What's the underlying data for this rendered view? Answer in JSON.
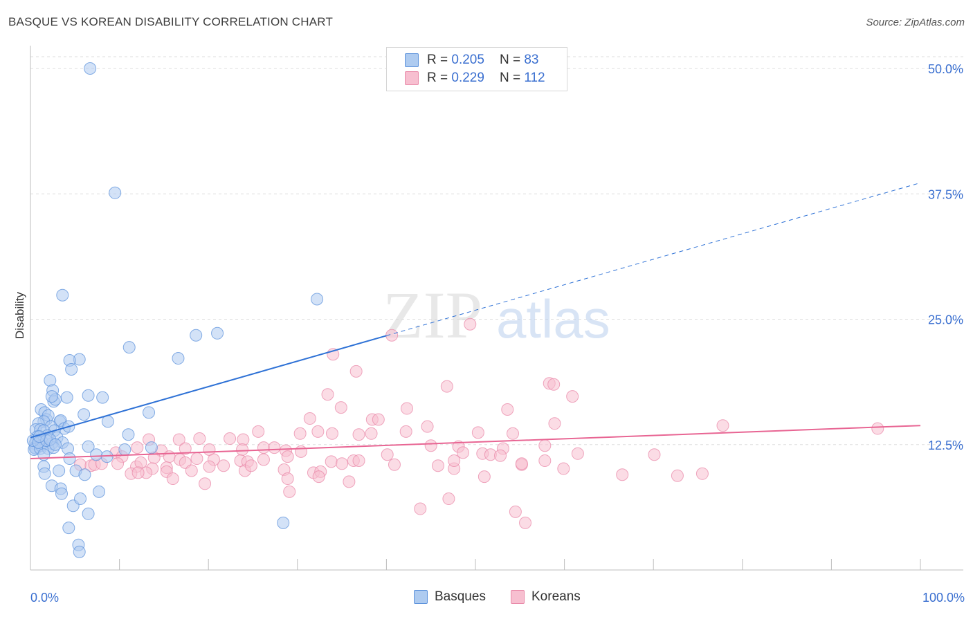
{
  "title": "BASQUE VS KOREAN DISABILITY CORRELATION CHART",
  "source": "Source: ZipAtlas.com",
  "watermark": {
    "zip": "ZIP",
    "atlas": "atlas"
  },
  "legend": {
    "rows": [
      {
        "r_label": "R =",
        "r_value": "0.205",
        "n_label": "N =",
        "n_value": "83"
      },
      {
        "r_label": "R =",
        "r_value": "0.229",
        "n_label": "N =",
        "n_value": "112"
      }
    ]
  },
  "bottom_legend": {
    "basques": "Basques",
    "koreans": "Koreans"
  },
  "colors": {
    "basques_fill": "#aecbf0",
    "basques_stroke": "#5e93dc",
    "basques_line": "#2f72d6",
    "koreans_fill": "#f7bfd0",
    "koreans_stroke": "#e98aa9",
    "koreans_line": "#e86593",
    "tick_label": "#3a6fd0",
    "grid": "#dddddd"
  },
  "chart_data": {
    "type": "scatter",
    "title": "BASQUE VS KOREAN DISABILITY CORRELATION CHART",
    "xlabel": "",
    "ylabel": "Disability",
    "xlim": [
      0,
      100
    ],
    "ylim": [
      0,
      52
    ],
    "x_tick_labels": [
      "0.0%",
      "100.0%"
    ],
    "y_ticks": [
      12.5,
      25.0,
      37.5,
      50.0
    ],
    "y_tick_labels": [
      "12.5%",
      "25.0%",
      "37.5%",
      "50.0%"
    ],
    "grid": true,
    "legend_position": "top-center",
    "series": [
      {
        "name": "Basques",
        "r": 0.205,
        "n": 83,
        "trend": {
          "x0": 0,
          "y0": 13.2,
          "x1": 100,
          "y1": 38.6,
          "solid_until_x": 40
        },
        "points": [
          [
            6.7,
            50.0
          ],
          [
            9.5,
            37.6
          ],
          [
            3.6,
            27.4
          ],
          [
            11.1,
            22.2
          ],
          [
            16.6,
            21.1
          ],
          [
            18.6,
            23.4
          ],
          [
            5.5,
            21.0
          ],
          [
            4.4,
            20.9
          ],
          [
            4.6,
            20.0
          ],
          [
            2.2,
            18.9
          ],
          [
            2.5,
            17.9
          ],
          [
            4.1,
            17.2
          ],
          [
            2.6,
            16.8
          ],
          [
            6.5,
            17.4
          ],
          [
            2.8,
            17.0
          ],
          [
            8.1,
            17.2
          ],
          [
            2.4,
            17.3
          ],
          [
            1.2,
            16.0
          ],
          [
            6.0,
            15.5
          ],
          [
            1.6,
            15.7
          ],
          [
            3.3,
            14.8
          ],
          [
            3.4,
            14.9
          ],
          [
            1.8,
            15.0
          ],
          [
            2.0,
            15.4
          ],
          [
            1.5,
            14.8
          ],
          [
            0.9,
            14.6
          ],
          [
            2.3,
            14.3
          ],
          [
            3.8,
            14.1
          ],
          [
            4.3,
            14.3
          ],
          [
            0.6,
            14.0
          ],
          [
            1.1,
            14.0
          ],
          [
            1.5,
            13.9
          ],
          [
            2.7,
            13.9
          ],
          [
            0.8,
            13.3
          ],
          [
            1.9,
            13.4
          ],
          [
            3.0,
            13.2
          ],
          [
            0.7,
            12.9
          ],
          [
            1.3,
            12.8
          ],
          [
            2.4,
            12.6
          ],
          [
            3.6,
            12.7
          ],
          [
            0.5,
            12.6
          ],
          [
            0.5,
            12.2
          ],
          [
            0.6,
            12.1
          ],
          [
            0.4,
            12.0
          ],
          [
            1.2,
            12.4
          ],
          [
            1.1,
            12.1
          ],
          [
            2.0,
            12.1
          ],
          [
            2.6,
            12.2
          ],
          [
            4.2,
            12.1
          ],
          [
            6.5,
            12.3
          ],
          [
            10.6,
            12.0
          ],
          [
            13.6,
            12.2
          ],
          [
            8.7,
            14.8
          ],
          [
            13.3,
            15.7
          ],
          [
            11.0,
            13.5
          ],
          [
            1.5,
            11.5
          ],
          [
            4.4,
            11.1
          ],
          [
            7.4,
            11.5
          ],
          [
            8.6,
            11.3
          ],
          [
            1.5,
            10.3
          ],
          [
            1.6,
            9.6
          ],
          [
            3.2,
            9.9
          ],
          [
            5.1,
            9.9
          ],
          [
            6.1,
            9.5
          ],
          [
            2.4,
            8.4
          ],
          [
            3.4,
            8.1
          ],
          [
            3.5,
            7.6
          ],
          [
            7.7,
            7.8
          ],
          [
            4.8,
            6.4
          ],
          [
            5.6,
            7.1
          ],
          [
            6.5,
            5.6
          ],
          [
            4.3,
            4.2
          ],
          [
            5.4,
            2.5
          ],
          [
            5.5,
            1.8
          ],
          [
            32.2,
            27.0
          ],
          [
            21.0,
            23.6
          ],
          [
            28.4,
            4.7
          ],
          [
            0.3,
            12.9
          ],
          [
            0.9,
            12.7
          ],
          [
            1.8,
            12.9
          ],
          [
            2.2,
            13.0
          ],
          [
            1.0,
            13.3
          ],
          [
            2.8,
            12.5
          ]
        ]
      },
      {
        "name": "Koreans",
        "r": 0.229,
        "n": 112,
        "trend": {
          "x0": 0,
          "y0": 11.1,
          "x1": 100,
          "y1": 14.4
        },
        "points": [
          [
            49.4,
            24.5
          ],
          [
            40.6,
            23.4
          ],
          [
            34.0,
            21.5
          ],
          [
            36.6,
            19.8
          ],
          [
            46.8,
            18.3
          ],
          [
            58.3,
            18.6
          ],
          [
            58.8,
            18.5
          ],
          [
            60.9,
            17.3
          ],
          [
            33.4,
            17.5
          ],
          [
            34.9,
            16.2
          ],
          [
            42.3,
            16.1
          ],
          [
            53.6,
            16.0
          ],
          [
            31.4,
            15.1
          ],
          [
            38.4,
            15.0
          ],
          [
            39.1,
            15.0
          ],
          [
            58.9,
            14.6
          ],
          [
            44.6,
            14.3
          ],
          [
            77.8,
            14.4
          ],
          [
            95.2,
            14.1
          ],
          [
            25.6,
            13.8
          ],
          [
            30.3,
            13.6
          ],
          [
            32.3,
            13.8
          ],
          [
            33.9,
            13.6
          ],
          [
            36.9,
            13.5
          ],
          [
            38.3,
            13.6
          ],
          [
            42.2,
            13.8
          ],
          [
            50.3,
            13.7
          ],
          [
            54.2,
            13.6
          ],
          [
            13.3,
            13.0
          ],
          [
            16.7,
            13.0
          ],
          [
            19.0,
            13.1
          ],
          [
            22.4,
            13.1
          ],
          [
            23.9,
            13.0
          ],
          [
            45.0,
            12.4
          ],
          [
            48.1,
            12.3
          ],
          [
            53.1,
            12.1
          ],
          [
            57.8,
            12.4
          ],
          [
            48.6,
            11.7
          ],
          [
            50.8,
            11.6
          ],
          [
            51.7,
            11.5
          ],
          [
            52.8,
            11.4
          ],
          [
            61.5,
            11.6
          ],
          [
            70.1,
            11.5
          ],
          [
            9.6,
            11.7
          ],
          [
            10.3,
            11.3
          ],
          [
            12.0,
            12.2
          ],
          [
            14.7,
            11.9
          ],
          [
            17.4,
            12.1
          ],
          [
            20.1,
            12.0
          ],
          [
            23.8,
            12.0
          ],
          [
            26.2,
            12.2
          ],
          [
            27.4,
            12.2
          ],
          [
            28.7,
            11.9
          ],
          [
            30.4,
            11.8
          ],
          [
            13.9,
            11.2
          ],
          [
            15.6,
            11.3
          ],
          [
            16.8,
            11.0
          ],
          [
            18.7,
            11.1
          ],
          [
            20.6,
            11.0
          ],
          [
            23.6,
            10.9
          ],
          [
            24.4,
            10.8
          ],
          [
            26.2,
            11.0
          ],
          [
            28.9,
            11.3
          ],
          [
            33.8,
            10.8
          ],
          [
            35.0,
            10.6
          ],
          [
            36.3,
            10.9
          ],
          [
            36.9,
            10.9
          ],
          [
            45.8,
            10.4
          ],
          [
            55.2,
            10.5
          ],
          [
            57.8,
            10.9
          ],
          [
            59.9,
            10.1
          ],
          [
            5.6,
            10.5
          ],
          [
            6.8,
            10.4
          ],
          [
            7.2,
            10.5
          ],
          [
            8.0,
            10.6
          ],
          [
            9.8,
            10.6
          ],
          [
            11.9,
            10.3
          ],
          [
            12.4,
            10.7
          ],
          [
            13.7,
            10.1
          ],
          [
            15.3,
            10.2
          ],
          [
            17.4,
            10.7
          ],
          [
            18.1,
            9.9
          ],
          [
            20.1,
            10.3
          ],
          [
            21.7,
            10.4
          ],
          [
            24.1,
            9.9
          ],
          [
            24.8,
            10.4
          ],
          [
            28.5,
            10.0
          ],
          [
            31.8,
            9.7
          ],
          [
            32.6,
            9.8
          ],
          [
            13.0,
            9.7
          ],
          [
            15.3,
            9.8
          ],
          [
            11.3,
            9.6
          ],
          [
            12.1,
            9.7
          ],
          [
            16.0,
            9.1
          ],
          [
            19.6,
            8.6
          ],
          [
            28.9,
            9.1
          ],
          [
            32.4,
            9.3
          ],
          [
            40.9,
            10.5
          ],
          [
            47.6,
            10.1
          ],
          [
            51.0,
            9.3
          ],
          [
            55.2,
            10.6
          ],
          [
            66.5,
            9.5
          ],
          [
            72.7,
            9.4
          ],
          [
            75.5,
            9.6
          ],
          [
            29.1,
            7.8
          ],
          [
            35.8,
            8.8
          ],
          [
            47.0,
            7.1
          ],
          [
            43.8,
            6.1
          ],
          [
            54.5,
            5.8
          ],
          [
            55.6,
            4.7
          ],
          [
            47.6,
            10.9
          ],
          [
            40.1,
            11.5
          ]
        ]
      }
    ]
  }
}
